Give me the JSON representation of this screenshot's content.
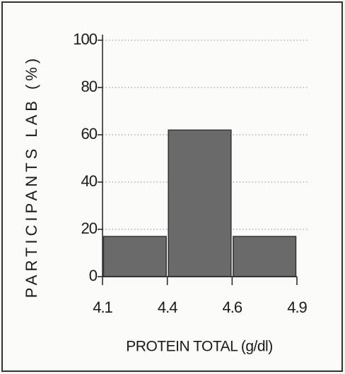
{
  "chart_data": {
    "type": "histogram",
    "bins": [
      4.1,
      4.4,
      4.6,
      4.9
    ],
    "values": [
      17,
      62,
      17
    ],
    "color": "#6a6a6a",
    "xlabel": "PROTEIN TOTAL  (g/dl)",
    "ylabel": "PARTICIPANTS LAB (%)",
    "ylim": [
      0,
      100
    ],
    "yticks": [
      0,
      20,
      40,
      60,
      80,
      100
    ],
    "grid": true
  }
}
